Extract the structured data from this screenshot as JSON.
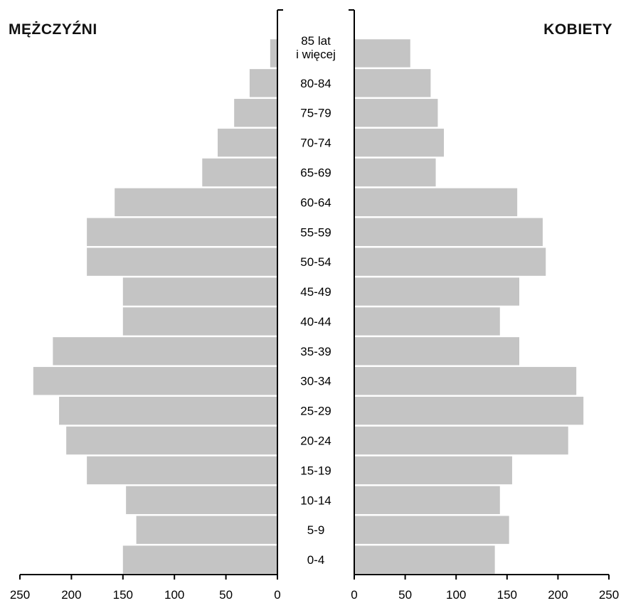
{
  "chart_data": {
    "type": "bar",
    "orientation": "horizontal-back-to-back",
    "left_title": "MĘŻCZYŹNI",
    "right_title": "KOBIETY",
    "categories": [
      "0-4",
      "5-9",
      "10-14",
      "15-19",
      "20-24",
      "25-29",
      "30-34",
      "35-39",
      "40-44",
      "45-49",
      "50-54",
      "55-59",
      "60-64",
      "65-69",
      "70-74",
      "75-79",
      "80-84",
      "85 lat i więcej"
    ],
    "category_lines": [
      [
        "0-4"
      ],
      [
        "5-9"
      ],
      [
        "10-14"
      ],
      [
        "15-19"
      ],
      [
        "20-24"
      ],
      [
        "25-29"
      ],
      [
        "30-34"
      ],
      [
        "35-39"
      ],
      [
        "40-44"
      ],
      [
        "45-49"
      ],
      [
        "50-54"
      ],
      [
        "55-59"
      ],
      [
        "60-64"
      ],
      [
        "65-69"
      ],
      [
        "70-74"
      ],
      [
        "75-79"
      ],
      [
        "80-84"
      ],
      [
        "85 lat",
        "i więcej"
      ]
    ],
    "series": [
      {
        "name": "MĘŻCZYŹNI",
        "side": "left",
        "values": [
          150,
          137,
          147,
          185,
          205,
          212,
          237,
          218,
          150,
          150,
          185,
          185,
          158,
          73,
          58,
          42,
          27,
          7
        ]
      },
      {
        "name": "KOBIETY",
        "side": "right",
        "values": [
          138,
          152,
          143,
          155,
          210,
          225,
          218,
          162,
          143,
          162,
          188,
          185,
          160,
          80,
          88,
          82,
          75,
          55
        ]
      }
    ],
    "xlim": [
      0,
      250
    ],
    "x_ticks": [
      "250",
      "200",
      "150",
      "100",
      "50",
      "0"
    ],
    "x_ticks_right": [
      "0",
      "50",
      "100",
      "150",
      "200",
      "250"
    ],
    "bar_color": "#c4c4c4",
    "axis_color": "#000000",
    "grid": false
  }
}
